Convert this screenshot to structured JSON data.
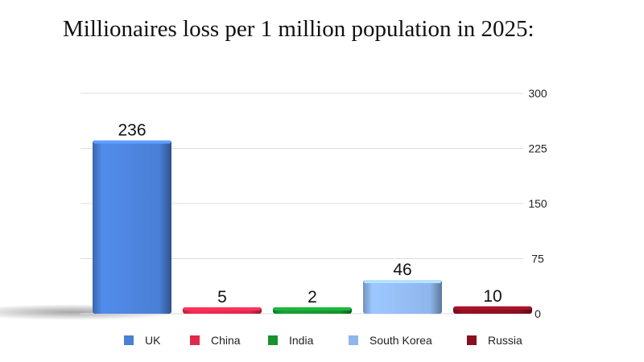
{
  "title": "Millionaires loss per 1 million population in 2025:",
  "chart_data": {
    "type": "bar",
    "title": "Millionaires loss per 1 million population in 2025:",
    "categories": [
      "UK",
      "China",
      "India",
      "South Korea",
      "Russia"
    ],
    "values": [
      236,
      5,
      2,
      46,
      10
    ],
    "data_labels": [
      "236",
      "5",
      "2",
      "46",
      "10"
    ],
    "colors": [
      "#4a7fd6",
      "#e0284a",
      "#17922f",
      "#8fb6ec",
      "#8a0f22"
    ],
    "ylim": [
      0,
      300
    ],
    "yticks": [
      "0",
      "75",
      "150",
      "225",
      "300"
    ],
    "ytick_values": [
      0,
      75,
      150,
      225,
      300
    ],
    "y_axis_position": "right",
    "grid": true,
    "legend": "bottom",
    "xlabel": "",
    "ylabel": ""
  }
}
